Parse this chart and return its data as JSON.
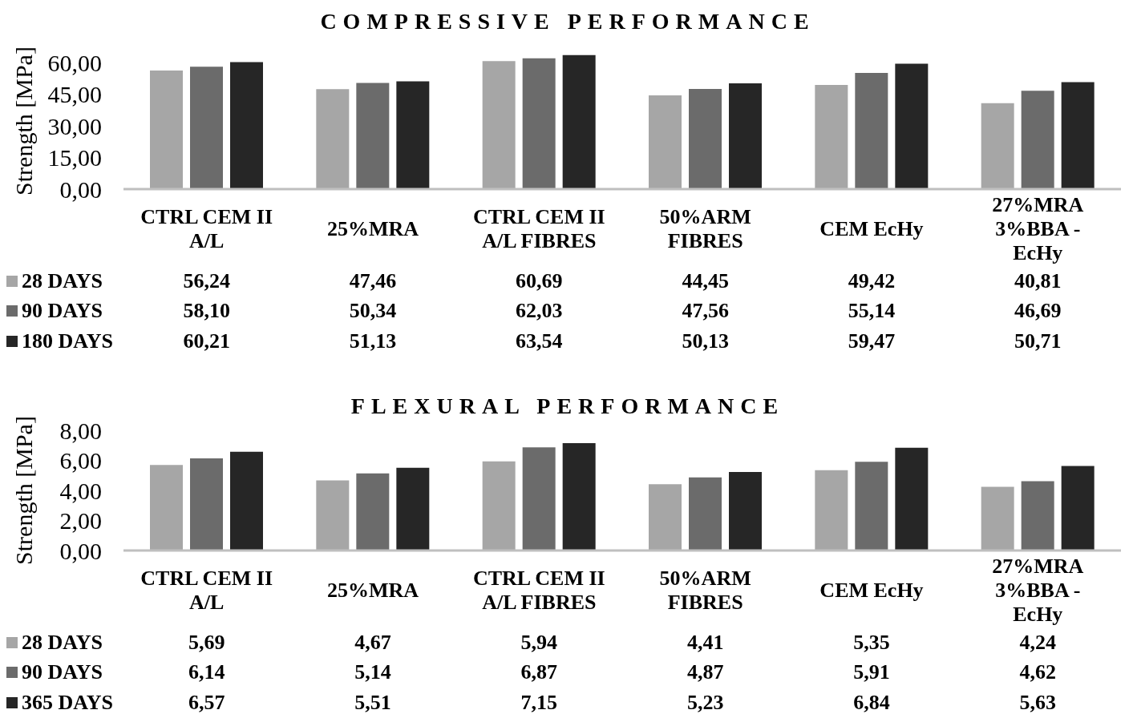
{
  "chart_data": [
    {
      "type": "bar",
      "title": "COMPRESSIVE PERFORMANCE",
      "ylabel": "Strength [MPa]",
      "categories": [
        "CTRL CEM II A/L",
        "25%MRA",
        "CTRL CEM II A/L FIBRES",
        "50%ARM FIBRES",
        "CEM EcHy",
        "27%MRA 3%BBA - EcHy"
      ],
      "series": [
        {
          "name": "28 DAYS",
          "color": "#a6a6a6",
          "values": [
            56.24,
            47.46,
            60.69,
            44.45,
            49.42,
            40.81
          ],
          "value_labels": [
            "56,24",
            "47,46",
            "60,69",
            "44,45",
            "49,42",
            "40,81"
          ]
        },
        {
          "name": "90 DAYS",
          "color": "#6b6b6b",
          "values": [
            58.1,
            50.34,
            62.03,
            47.56,
            55.14,
            46.69
          ],
          "value_labels": [
            "58,10",
            "50,34",
            "62,03",
            "47,56",
            "55,14",
            "46,69"
          ]
        },
        {
          "name": "180 DAYS",
          "color": "#262626",
          "values": [
            60.21,
            51.13,
            63.54,
            50.13,
            59.47,
            50.71
          ],
          "value_labels": [
            "60,21",
            "51,13",
            "63,54",
            "50,13",
            "59,47",
            "50,71"
          ]
        }
      ],
      "ylim": [
        0,
        65
      ],
      "yticks": [
        {
          "value": 0,
          "label": "0,00"
        },
        {
          "value": 15,
          "label": "15,00"
        },
        {
          "value": 30,
          "label": "30,00"
        },
        {
          "value": 45,
          "label": "45,00"
        },
        {
          "value": 60,
          "label": "60,00"
        }
      ],
      "legend": "bottom"
    },
    {
      "type": "bar",
      "title": "FLEXURAL PERFORMANCE",
      "ylabel": "Strength [MPa]",
      "categories": [
        "CTRL CEM II A/L",
        "25%MRA",
        "CTRL CEM II A/L FIBRES",
        "50%ARM FIBRES",
        "CEM EcHy",
        "27%MRA 3%BBA - EcHy"
      ],
      "series": [
        {
          "name": "28 DAYS",
          "color": "#a6a6a6",
          "values": [
            5.69,
            4.67,
            5.94,
            4.41,
            5.35,
            4.24
          ],
          "value_labels": [
            "5,69",
            "4,67",
            "5,94",
            "4,41",
            "5,35",
            "4,24"
          ]
        },
        {
          "name": "90 DAYS",
          "color": "#6b6b6b",
          "values": [
            6.14,
            5.14,
            6.87,
            4.87,
            5.91,
            4.62
          ],
          "value_labels": [
            "6,14",
            "5,14",
            "6,87",
            "4,87",
            "5,91",
            "4,62"
          ]
        },
        {
          "name": "365 DAYS",
          "color": "#262626",
          "values": [
            6.57,
            5.51,
            7.15,
            5.23,
            6.84,
            5.63
          ],
          "value_labels": [
            "6,57",
            "5,51",
            "7,15",
            "5,23",
            "6,84",
            "5,63"
          ]
        }
      ],
      "ylim": [
        0,
        8
      ],
      "yticks": [
        {
          "value": 0,
          "label": "0,00"
        },
        {
          "value": 2,
          "label": "2,00"
        },
        {
          "value": 4,
          "label": "4,00"
        },
        {
          "value": 6,
          "label": "6,00"
        },
        {
          "value": 8,
          "label": "8,00"
        }
      ],
      "legend": "bottom"
    }
  ]
}
